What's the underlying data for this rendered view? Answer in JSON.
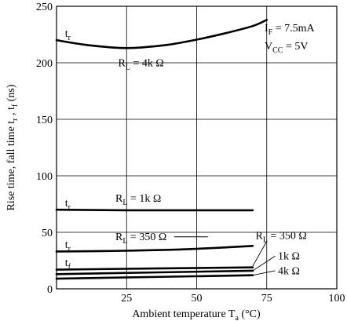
{
  "chart_data": {
    "type": "line",
    "title": "",
    "xlabel": "Ambient temperature T",
    "xlabel_sub": "a",
    "xlabel_unit": " (°C)",
    "ylabel": "Rise time, fall time t",
    "ylabel_sub_r": "r",
    "ylabel_sep": " , t",
    "ylabel_sub_f": "f",
    "ylabel_unit": "  (ns)",
    "xlim": [
      0,
      100
    ],
    "ylim": [
      0,
      250
    ],
    "x_ticks": [
      25,
      50,
      75,
      100
    ],
    "y_ticks": [
      0,
      50,
      100,
      150,
      200,
      250
    ],
    "grid": true,
    "conditions": [
      {
        "main": "I",
        "sub": "F",
        "rest": " = 7.5mA"
      },
      {
        "main": "V",
        "sub": "CC",
        "rest": " = 5V"
      }
    ],
    "series": [
      {
        "name": "RL = 4kΩ, tr",
        "x": [
          0,
          10,
          20,
          25,
          30,
          40,
          50,
          60,
          70,
          75
        ],
        "y": [
          220,
          216,
          213.5,
          213,
          213.5,
          216,
          220.5,
          226,
          232.5,
          238
        ]
      },
      {
        "name": "RL = 1kΩ, tr",
        "x": [
          0,
          25,
          50,
          70
        ],
        "y": [
          70,
          69.5,
          69.5,
          69.5
        ]
      },
      {
        "name": "RL = 350Ω, tr",
        "x": [
          0,
          20,
          40,
          55,
          70
        ],
        "y": [
          33,
          33.5,
          34.5,
          36,
          38
        ]
      },
      {
        "name": "RL = 350Ω, tf",
        "x": [
          0,
          70
        ],
        "y": [
          17,
          19
        ]
      },
      {
        "name": "RL = 1kΩ, tf",
        "x": [
          0,
          70
        ],
        "y": [
          13,
          16
        ]
      },
      {
        "name": "RL = 4kΩ, tf",
        "x": [
          0,
          70
        ],
        "y": [
          9,
          12
        ]
      }
    ],
    "curve_labels": [
      {
        "id": "tr-4k",
        "main": "t",
        "sub": "r",
        "x": 3,
        "y": 223
      },
      {
        "id": "rl-4k",
        "main": "R",
        "sub": "L",
        "rest": " = 4k Ω",
        "x": 22,
        "y": 197
      },
      {
        "id": "tr-1k",
        "main": "t",
        "sub": "r",
        "x": 3,
        "y": 73
      },
      {
        "id": "rl-1k",
        "main": "R",
        "sub": "L",
        "rest": " = 1k Ω",
        "x": 21,
        "y": 77
      },
      {
        "id": "tr-350",
        "main": "t",
        "sub": "r",
        "x": 3,
        "y": 36
      },
      {
        "id": "rl-350-a",
        "main": "R",
        "sub": "L",
        "rest": " = 350 Ω",
        "x": 21,
        "y": 43
      },
      {
        "id": "tf",
        "main": "t",
        "sub": "f",
        "x": 3,
        "y": 20
      },
      {
        "id": "rl-350-b",
        "main": "R",
        "sub": "L",
        "rest": " = 350 Ω",
        "x": 71,
        "y": 44
      },
      {
        "id": "rl-1k-b",
        "rest": "1k Ω",
        "x": 79,
        "y": 26
      },
      {
        "id": "rl-4k-b",
        "rest": "4k Ω",
        "x": 79,
        "y": 13
      }
    ],
    "leaders": [
      {
        "id": "leader-350-a",
        "x": [
          42,
          54
        ],
        "y": [
          46,
          46
        ]
      },
      {
        "id": "leader-350-b",
        "x": [
          70,
          75
        ],
        "y": [
          20,
          42
        ]
      },
      {
        "id": "leader-1k",
        "x": [
          70,
          78
        ],
        "y": [
          16,
          29
        ]
      },
      {
        "id": "leader-4k",
        "x": [
          70,
          78
        ],
        "y": [
          12,
          16
        ]
      }
    ]
  }
}
